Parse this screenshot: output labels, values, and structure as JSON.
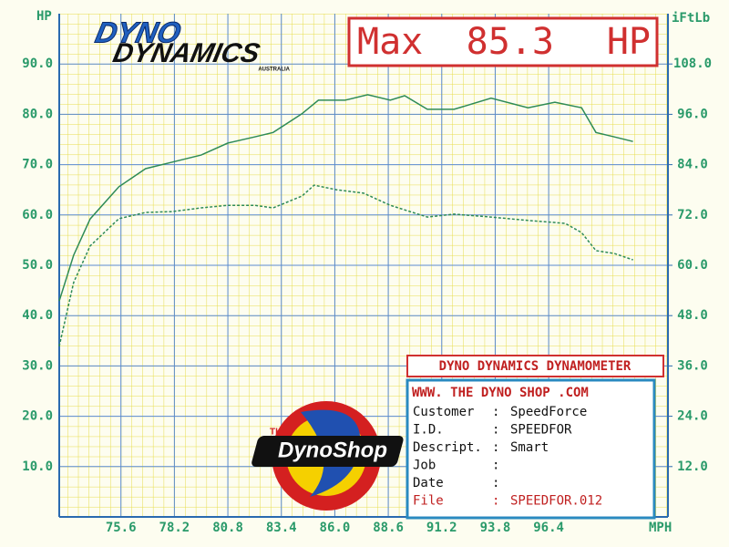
{
  "chart_data": {
    "type": "line",
    "y_label": "HP",
    "y2_label": "iFtLb",
    "x_label": "MPH",
    "xlim": [
      72.6,
      102.2
    ],
    "ylim": [
      0,
      100
    ],
    "y2lim": [
      0,
      120
    ],
    "xticks": [
      75.6,
      78.2,
      80.8,
      83.4,
      {
        "value": 86,
        "label": "86.0"
      },
      88.6,
      91.2,
      93.8,
      96.4
    ],
    "yticks": [
      {
        "value": 10,
        "label": "10.0"
      },
      {
        "value": 20,
        "label": "20.0"
      },
      {
        "value": 30,
        "label": "30.0"
      },
      {
        "value": 40,
        "label": "40.0"
      },
      {
        "value": 50,
        "label": "50.0"
      },
      {
        "value": 60,
        "label": "60.0"
      },
      {
        "value": 70,
        "label": "70.0"
      },
      {
        "value": 80,
        "label": "80.0"
      },
      {
        "value": 90,
        "label": "90.0"
      }
    ],
    "y2ticks": [
      {
        "value": 12,
        "label": "12.0"
      },
      {
        "value": 24,
        "label": "24.0"
      },
      {
        "value": 36,
        "label": "36.0"
      },
      {
        "value": 48,
        "label": "48.0"
      },
      {
        "value": 60,
        "label": "60.0"
      },
      {
        "value": 72,
        "label": "72.0"
      },
      {
        "value": 84,
        "label": "84.0"
      },
      {
        "value": 96,
        "label": "96.0"
      },
      {
        "value": 108,
        "label": "108.0"
      }
    ],
    "grid": true,
    "series": [
      {
        "color": "#2e8b57",
        "style": "solid",
        "x": [
          72.6,
          73.3,
          74.1,
          75.5,
          76.8,
          78.1,
          79.5,
          80.8,
          82.1,
          83.0,
          84.4,
          85.2,
          86.5,
          87.6,
          88.7,
          89.4,
          90.5,
          91.8,
          93.6,
          95.4,
          96.7,
          98.0,
          98.7,
          99.6,
          100.5
        ],
        "values": [
          42.9,
          52,
          59.2,
          65.6,
          69.2,
          70.5,
          71.9,
          74.3,
          75.5,
          76.4,
          80.1,
          82.8,
          82.8,
          83.9,
          82.8,
          83.7,
          81,
          81,
          83.2,
          81.3,
          82.4,
          81.3,
          76.4,
          75.5,
          74.6
        ]
      },
      {
        "color": "#2e8b57",
        "style": "dashed",
        "axis": "y2",
        "x": [
          72.6,
          73.3,
          74.1,
          75.5,
          76.8,
          78.1,
          79.5,
          80.8,
          82.1,
          83.0,
          84.4,
          85.0,
          86.1,
          87.4,
          88.7,
          90.5,
          91.8,
          93.6,
          95.4,
          97.2,
          98.0,
          98.7,
          99.6,
          100.5
        ],
        "values": [
          40.7,
          55.9,
          64.6,
          71.1,
          72.6,
          72.8,
          73.7,
          74.3,
          74.3,
          73.7,
          76.5,
          79.1,
          78,
          77.2,
          74.3,
          71.5,
          72.2,
          71.5,
          70.7,
          70,
          67.8,
          63.5,
          62.8,
          61.3
        ]
      }
    ]
  },
  "brand": {
    "line1": "DYNO",
    "line2": "DYNAMICS",
    "country": "AUSTRALIA"
  },
  "max_box": {
    "label": "Max",
    "value": 85.3,
    "unit": "HP"
  },
  "info": {
    "title": "DYNO DYNAMICS DYNAMOMETER",
    "website": "WWW. THE DYNO SHOP .COM",
    "rows": [
      {
        "label": "Customer",
        "value": "SpeedForce"
      },
      {
        "label": "I.D.",
        "value": "SPEEDFOR"
      },
      {
        "label": "Descript.",
        "value": "Smart"
      },
      {
        "label": "Job"
      },
      {
        "label": "Date"
      },
      {
        "label": "File",
        "value": "SPEEDFOR.012"
      }
    ],
    "separator": ":"
  },
  "logo": {
    "small": "THE",
    "name": "DynoShop"
  }
}
